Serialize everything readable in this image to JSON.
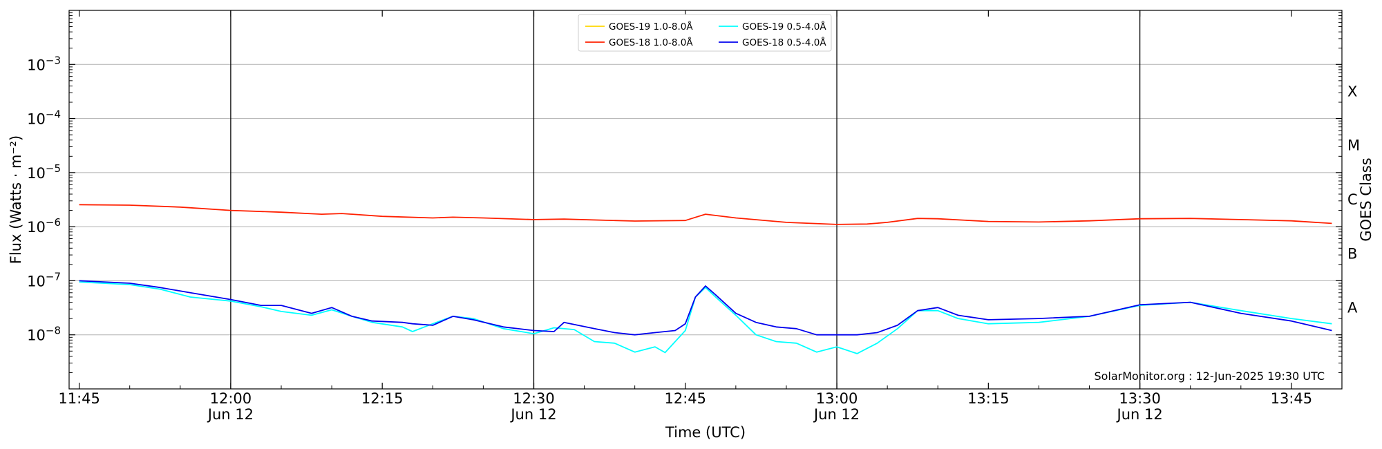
{
  "chart_data": {
    "type": "line",
    "title": "",
    "xlabel": "Time (UTC)",
    "ylabel": "Flux (Watts · m⁻²)",
    "y2label": "GOES Class",
    "y_scale": "log",
    "xlim": [
      "2025-06-12 11:44",
      "2025-06-12 13:50"
    ],
    "ylim": [
      1e-09,
      0.01
    ],
    "grid": "horizontal at decades",
    "x_ticks": [
      {
        "t": "11:45",
        "label": "11:45",
        "sub": ""
      },
      {
        "t": "12:00",
        "label": "12:00",
        "sub": "Jun 12"
      },
      {
        "t": "12:15",
        "label": "12:15",
        "sub": ""
      },
      {
        "t": "12:30",
        "label": "12:30",
        "sub": "Jun 12"
      },
      {
        "t": "12:45",
        "label": "12:45",
        "sub": ""
      },
      {
        "t": "13:00",
        "label": "13:00",
        "sub": "Jun 12"
      },
      {
        "t": "13:15",
        "label": "13:15",
        "sub": ""
      },
      {
        "t": "13:30",
        "label": "13:30",
        "sub": "Jun 12"
      },
      {
        "t": "13:45",
        "label": "13:45",
        "sub": ""
      }
    ],
    "vlines": [
      "12:00",
      "12:30",
      "13:00",
      "13:30"
    ],
    "y_ticks": [
      {
        "exp": -8,
        "base": "10",
        "sup": "−8"
      },
      {
        "exp": -7,
        "base": "10",
        "sup": "−7"
      },
      {
        "exp": -6,
        "base": "10",
        "sup": "−6"
      },
      {
        "exp": -5,
        "base": "10",
        "sup": "−5"
      },
      {
        "exp": -4,
        "base": "10",
        "sup": "−4"
      },
      {
        "exp": -3,
        "base": "10",
        "sup": "−3"
      }
    ],
    "goes_classes": [
      {
        "label": "A",
        "exp": -7.5
      },
      {
        "label": "B",
        "exp": -6.5
      },
      {
        "label": "C",
        "exp": -5.5
      },
      {
        "label": "M",
        "exp": -4.5
      },
      {
        "label": "X",
        "exp": -3.5
      }
    ],
    "legend_position": "top-center",
    "legend": [
      {
        "name": "GOES-19 1.0-8.0Å",
        "color": "#ffd700"
      },
      {
        "name": "GOES-19 0.5-4.0Å",
        "color": "#00ffff"
      },
      {
        "name": "GOES-18 1.0-8.0Å",
        "color": "#ff2000"
      },
      {
        "name": "GOES-18 0.5-4.0Å",
        "color": "#0000ee"
      }
    ],
    "credit": "SolarMonitor.org : 12-Jun-2025 19:30 UTC",
    "series": [
      {
        "name": "GOES-18 1.0-8.0Å",
        "color": "#ff2000",
        "x": [
          "11:45",
          "11:50",
          "11:55",
          "12:00",
          "12:05",
          "12:09",
          "12:11",
          "12:15",
          "12:20",
          "12:22",
          "12:25",
          "12:30",
          "12:33",
          "12:40",
          "12:45",
          "12:47",
          "12:50",
          "12:55",
          "13:00",
          "13:03",
          "13:05",
          "13:08",
          "13:10",
          "13:15",
          "13:20",
          "13:25",
          "13:30",
          "13:35",
          "13:40",
          "13:45",
          "13:49"
        ],
        "y": [
          2.55e-06,
          2.5e-06,
          2.3e-06,
          2e-06,
          1.85e-06,
          1.7e-06,
          1.75e-06,
          1.55e-06,
          1.45e-06,
          1.5e-06,
          1.45e-06,
          1.35e-06,
          1.38e-06,
          1.27e-06,
          1.3e-06,
          1.7e-06,
          1.45e-06,
          1.2e-06,
          1.1e-06,
          1.12e-06,
          1.2e-06,
          1.42e-06,
          1.4e-06,
          1.25e-06,
          1.22e-06,
          1.28e-06,
          1.4e-06,
          1.42e-06,
          1.35e-06,
          1.28e-06,
          1.15e-06
        ]
      },
      {
        "name": "GOES-19 0.5-4.0Å",
        "color": "#00ffff",
        "x": [
          "11:45",
          "11:50",
          "11:53",
          "11:56",
          "12:00",
          "12:03",
          "12:05",
          "12:08",
          "12:10",
          "12:12",
          "12:14",
          "12:17",
          "12:18",
          "12:20",
          "12:22",
          "12:24",
          "12:27",
          "12:30",
          "12:32",
          "12:34",
          "12:36",
          "12:38",
          "12:40",
          "12:42",
          "12:43",
          "12:45",
          "12:46",
          "12:47",
          "12:48",
          "12:50",
          "12:52",
          "12:54",
          "12:56",
          "12:58",
          "13:00",
          "13:02",
          "13:04",
          "13:06",
          "13:08",
          "13:10",
          "13:12",
          "13:15",
          "13:20",
          "13:25",
          "13:30",
          "13:35",
          "13:40",
          "13:45",
          "13:49"
        ],
        "y": [
          9.5e-08,
          8.5e-08,
          7e-08,
          5e-08,
          4.2e-08,
          3.3e-08,
          2.7e-08,
          2.3e-08,
          2.9e-08,
          2.2e-08,
          1.7e-08,
          1.4e-08,
          1.15e-08,
          1.6e-08,
          2.2e-08,
          2e-08,
          1.3e-08,
          1.05e-08,
          1.35e-08,
          1.25e-08,
          7.5e-09,
          7e-09,
          4.8e-09,
          6e-09,
          4.7e-09,
          1.2e-08,
          5e-08,
          7.5e-08,
          5e-08,
          2.3e-08,
          1e-08,
          7.5e-09,
          7e-09,
          4.8e-09,
          6e-09,
          4.5e-09,
          7e-09,
          1.3e-08,
          2.8e-08,
          2.8e-08,
          2e-08,
          1.6e-08,
          1.7e-08,
          2.2e-08,
          3.5e-08,
          4e-08,
          2.8e-08,
          2e-08,
          1.6e-08
        ]
      },
      {
        "name": "GOES-18 0.5-4.0Å",
        "color": "#0000ee",
        "x": [
          "11:45",
          "11:50",
          "11:53",
          "11:56",
          "12:00",
          "12:03",
          "12:05",
          "12:08",
          "12:10",
          "12:12",
          "12:14",
          "12:17",
          "12:18",
          "12:20",
          "12:22",
          "12:24",
          "12:27",
          "12:30",
          "12:32",
          "12:33",
          "12:36",
          "12:38",
          "12:40",
          "12:42",
          "12:44",
          "12:45",
          "12:46",
          "12:47",
          "12:48",
          "12:50",
          "12:52",
          "12:54",
          "12:56",
          "12:58",
          "13:00",
          "13:02",
          "13:04",
          "13:06",
          "13:08",
          "13:10",
          "13:12",
          "13:15",
          "13:20",
          "13:25",
          "13:30",
          "13:35",
          "13:40",
          "13:45",
          "13:49"
        ],
        "y": [
          1e-07,
          9e-08,
          7.5e-08,
          6e-08,
          4.5e-08,
          3.5e-08,
          3.5e-08,
          2.5e-08,
          3.2e-08,
          2.2e-08,
          1.8e-08,
          1.7e-08,
          1.6e-08,
          1.5e-08,
          2.2e-08,
          1.9e-08,
          1.4e-08,
          1.2e-08,
          1.15e-08,
          1.7e-08,
          1.3e-08,
          1.1e-08,
          1e-08,
          1.1e-08,
          1.2e-08,
          1.6e-08,
          5e-08,
          8e-08,
          5.5e-08,
          2.5e-08,
          1.7e-08,
          1.4e-08,
          1.3e-08,
          1e-08,
          1e-08,
          1e-08,
          1.1e-08,
          1.5e-08,
          2.8e-08,
          3.2e-08,
          2.3e-08,
          1.9e-08,
          2e-08,
          2.2e-08,
          3.6e-08,
          4e-08,
          2.5e-08,
          1.8e-08,
          1.2e-08
        ]
      }
    ]
  }
}
